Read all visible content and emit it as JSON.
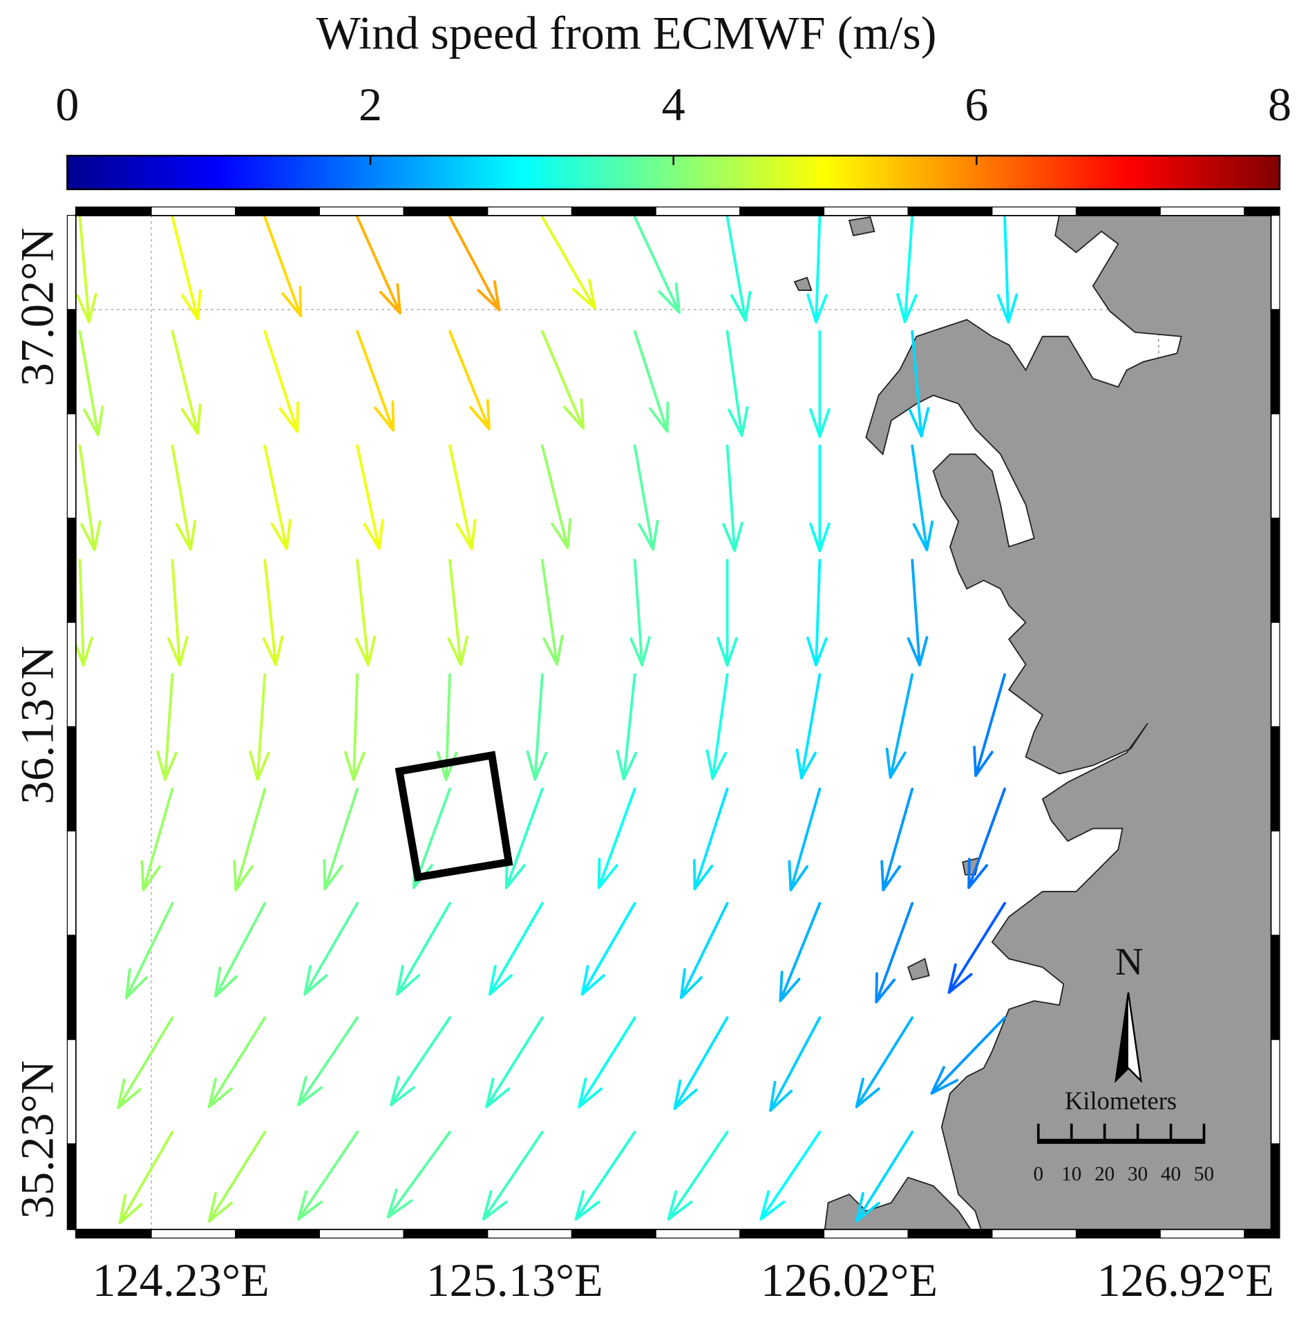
{
  "title": "Wind speed from ECMWF (m/s)",
  "colorbar": {
    "lim": [
      0,
      8
    ],
    "ticks": [
      0,
      2,
      4,
      6,
      8
    ]
  },
  "lat_labels": [
    "37.02°N",
    "36.13°N",
    "35.23°N"
  ],
  "lon_labels": [
    "124.23°E",
    "125.13°E",
    "126.02°E",
    "126.92°E"
  ],
  "arrows": {
    "speed": [
      [
        4.6,
        4.9,
        5.3,
        5.6,
        5.7,
        4.8,
        3.7,
        3.3,
        3.1,
        3.1,
        2.9
      ],
      [
        4.4,
        4.6,
        4.9,
        5.3,
        5.3,
        4.4,
        3.8,
        3.4,
        3.2,
        2.7,
        null
      ],
      [
        4.5,
        4.6,
        4.8,
        4.9,
        4.8,
        4.2,
        3.7,
        3.4,
        3.1,
        2.5,
        null
      ],
      [
        4.5,
        4.6,
        4.7,
        4.6,
        4.5,
        4.1,
        3.6,
        3.3,
        2.9,
        2.3,
        null
      ],
      [
        null,
        4.4,
        4.5,
        4.3,
        4.0,
        3.7,
        3.5,
        3.2,
        2.8,
        2.4,
        2.0
      ],
      [
        null,
        4.2,
        4.2,
        4.0,
        3.7,
        3.4,
        3.1,
        2.8,
        2.5,
        2.2,
        1.9
      ],
      [
        null,
        4.0,
        3.9,
        3.7,
        3.5,
        3.2,
        2.9,
        2.7,
        2.4,
        2.1,
        1.7
      ],
      [
        null,
        4.2,
        4.1,
        3.8,
        3.5,
        3.4,
        3.1,
        2.8,
        2.6,
        2.4,
        2.2
      ],
      [
        null,
        4.4,
        4.3,
        3.9,
        3.7,
        3.5,
        3.3,
        3.3,
        3.0,
        2.7,
        null
      ]
    ],
    "bearing": [
      [
        175,
        166,
        160,
        156,
        152,
        150,
        155,
        170,
        182,
        184,
        178
      ],
      [
        170,
        166,
        162,
        160,
        158,
        157,
        162,
        172,
        180,
        175,
        null
      ],
      [
        172,
        170,
        168,
        168,
        168,
        166,
        170,
        176,
        180,
        172,
        null
      ],
      [
        178,
        176,
        174,
        174,
        174,
        172,
        176,
        180,
        182,
        176,
        null
      ],
      [
        null,
        184,
        184,
        182,
        182,
        184,
        186,
        188,
        190,
        192,
        196
      ],
      [
        null,
        196,
        196,
        198,
        200,
        200,
        200,
        198,
        196,
        196,
        200
      ],
      [
        null,
        206,
        208,
        210,
        210,
        210,
        210,
        206,
        202,
        200,
        212
      ],
      [
        null,
        211,
        212,
        214,
        214,
        212,
        212,
        210,
        208,
        212,
        224
      ],
      [
        null,
        210,
        212,
        214,
        216,
        214,
        214,
        214,
        214,
        212,
        null
      ]
    ]
  },
  "north_label": "N",
  "scale_bar": {
    "title": "Kilometers",
    "ticks": [
      0,
      10,
      20,
      30,
      40,
      50
    ]
  }
}
